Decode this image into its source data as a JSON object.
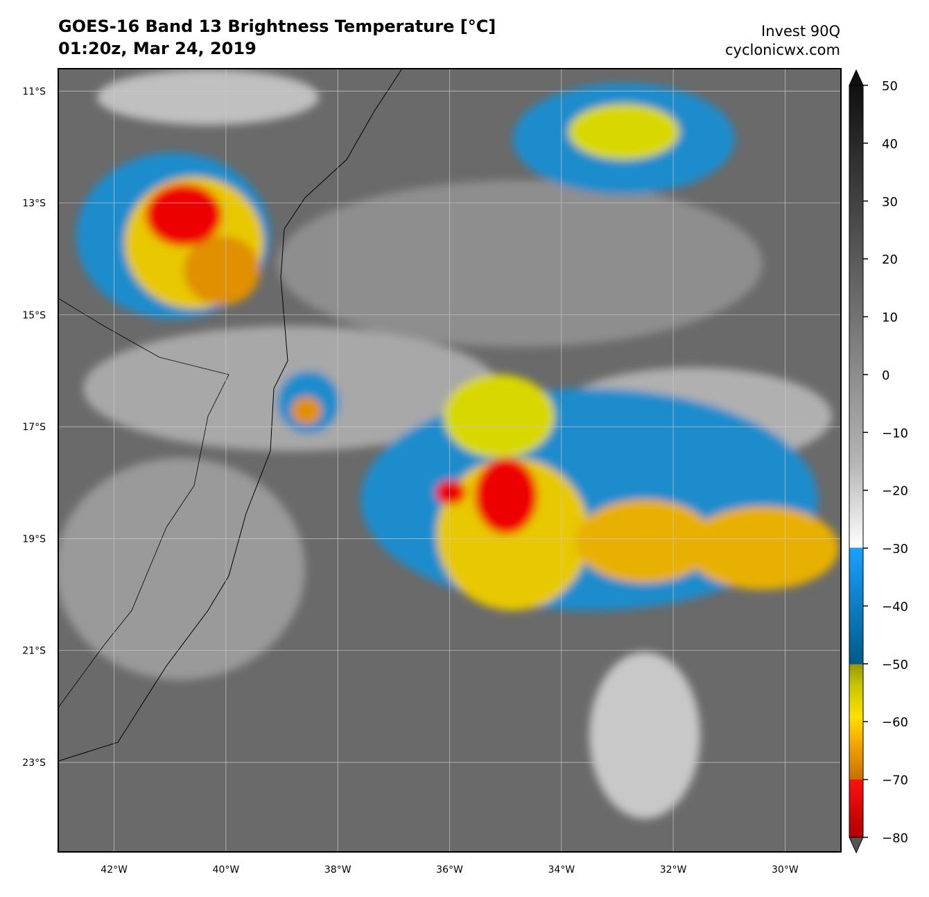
{
  "header": {
    "title": "GOES-16 Band 13 Brightness Temperature [°C]",
    "subtitle": "01:20z, Mar 24, 2019",
    "storm": "Invest 90Q",
    "source": "cyclonicwx.com"
  },
  "map": {
    "xlim": [
      -43,
      -29
    ],
    "ylim": [
      -24.6,
      -10.6
    ],
    "xticks": [
      {
        "value": -42,
        "label": "42°W"
      },
      {
        "value": -40,
        "label": "40°W"
      },
      {
        "value": -38,
        "label": "38°W"
      },
      {
        "value": -36,
        "label": "36°W"
      },
      {
        "value": -34,
        "label": "34°W"
      },
      {
        "value": -32,
        "label": "32°W"
      },
      {
        "value": -30,
        "label": "30°W"
      }
    ],
    "yticks": [
      {
        "value": -11,
        "label": "11°S"
      },
      {
        "value": -13,
        "label": "13°S"
      },
      {
        "value": -15,
        "label": "15°S"
      },
      {
        "value": -17,
        "label": "17°S"
      },
      {
        "value": -19,
        "label": "19°S"
      },
      {
        "value": -21,
        "label": "21°S"
      },
      {
        "value": -23,
        "label": "23°S"
      }
    ],
    "grid": true
  },
  "colorbar": {
    "lim": [
      -80,
      50
    ],
    "ticks": [
      50,
      40,
      30,
      20,
      10,
      0,
      {
        "value": -10,
        "label": "−10"
      },
      {
        "value": -20,
        "label": "−20"
      },
      {
        "value": -30,
        "label": "−30"
      },
      {
        "value": -40,
        "label": "−40"
      },
      {
        "value": -50,
        "label": "−50"
      },
      {
        "value": -60,
        "label": "−60"
      },
      {
        "value": -70,
        "label": "−70"
      },
      {
        "value": -80,
        "label": "−80"
      }
    ]
  }
}
